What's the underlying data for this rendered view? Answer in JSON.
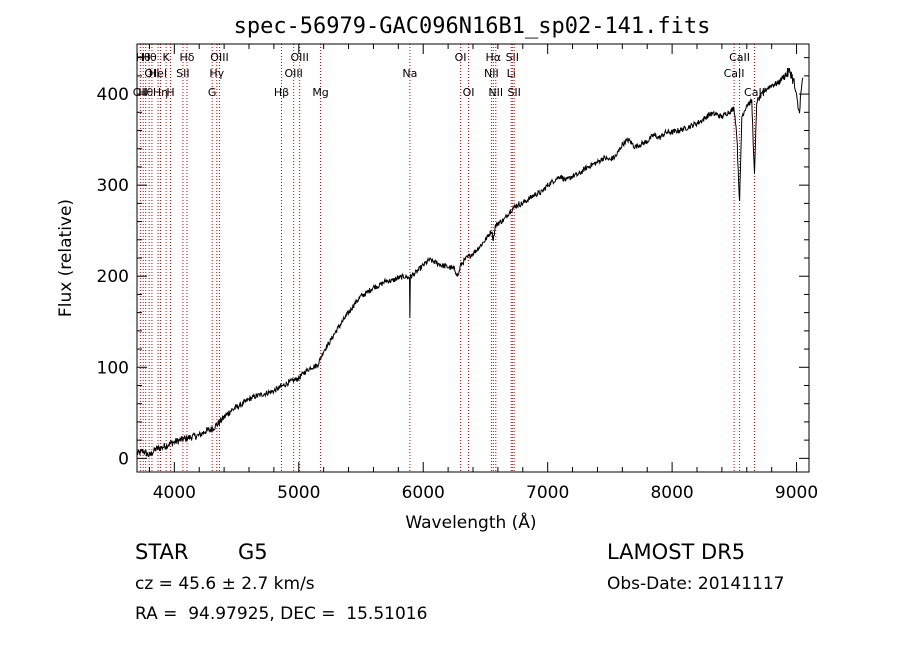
{
  "chart_data": {
    "type": "line",
    "title": "spec-56979-GAC096N16B1_sp02-141.fits",
    "xlabel": "Wavelength (Å)",
    "ylabel": "Flux (relative)",
    "xlim": [
      3700,
      9100
    ],
    "ylim": [
      -15,
      455
    ],
    "xticks": [
      4000,
      5000,
      6000,
      7000,
      8000,
      9000
    ],
    "yticks": [
      0,
      100,
      200,
      300,
      400
    ],
    "line_color": "#000000",
    "marker_color": "#cc0000",
    "series": [
      {
        "x": [
          3700,
          3750,
          3800,
          3850,
          3900,
          3950,
          4000,
          4050,
          4100,
          4150,
          4200,
          4250,
          4300,
          4350,
          4400,
          4450,
          4500,
          4550,
          4600,
          4650,
          4700,
          4750,
          4800,
          4850,
          4900,
          4950,
          5000,
          5050,
          5100,
          5150,
          5200,
          5250,
          5300,
          5350,
          5400,
          5450,
          5500,
          5550,
          5600,
          5650,
          5700,
          5750,
          5800,
          5850,
          5890,
          5893,
          5896,
          5900,
          5950,
          6000,
          6050,
          6100,
          6150,
          6200,
          6250,
          6280,
          6300,
          6350,
          6400,
          6450,
          6500,
          6550,
          6563,
          6580,
          6600,
          6650,
          6700,
          6750,
          6800,
          6850,
          6900,
          6950,
          7000,
          7050,
          7100,
          7150,
          7200,
          7250,
          7300,
          7350,
          7400,
          7450,
          7500,
          7550,
          7600,
          7650,
          7700,
          7750,
          7800,
          7850,
          7900,
          7950,
          8000,
          8050,
          8100,
          8150,
          8200,
          8250,
          8300,
          8350,
          8400,
          8450,
          8480,
          8498,
          8520,
          8542,
          8560,
          8600,
          8640,
          8662,
          8680,
          8700,
          8750,
          8800,
          8850,
          8900,
          8950,
          8980,
          9000,
          9020,
          9050
        ],
        "y": [
          5,
          8,
          3,
          10,
          12,
          15,
          18,
          20,
          22,
          24,
          25,
          30,
          32,
          38,
          45,
          52,
          56,
          60,
          65,
          68,
          70,
          72,
          74,
          78,
          82,
          85,
          88,
          95,
          100,
          102,
          118,
          128,
          140,
          150,
          160,
          170,
          178,
          182,
          188,
          190,
          195,
          195,
          198,
          200,
          198,
          155,
          198,
          200,
          205,
          212,
          218,
          215,
          212,
          210,
          208,
          200,
          212,
          220,
          225,
          232,
          240,
          250,
          240,
          255,
          258,
          262,
          272,
          278,
          280,
          285,
          290,
          292,
          300,
          305,
          310,
          305,
          310,
          312,
          318,
          322,
          325,
          330,
          328,
          332,
          345,
          350,
          342,
          345,
          348,
          355,
          352,
          358,
          358,
          360,
          362,
          365,
          368,
          372,
          378,
          378,
          375,
          380,
          382,
          385,
          355,
          280,
          375,
          388,
          392,
          310,
          392,
          395,
          405,
          410,
          412,
          420,
          425,
          412,
          395,
          380,
          418
        ]
      }
    ],
    "line_markers": [
      {
        "wl": 3727,
        "label": "OII",
        "row": 3
      },
      {
        "wl": 3750,
        "label": "Hθ",
        "row": 1
      },
      {
        "wl": 3770,
        "label": "Hθ",
        "row": 3
      },
      {
        "wl": 3798,
        "label": "Hθ",
        "row": 1
      },
      {
        "wl": 3820,
        "label": "OII",
        "row": 2
      },
      {
        "wl": 3869,
        "label": "HeI",
        "row": 2
      },
      {
        "wl": 3889,
        "label": "Hη",
        "row": 3
      },
      {
        "wl": 3934,
        "label": "K",
        "row": 1
      },
      {
        "wl": 3969,
        "label": "H",
        "row": 3
      },
      {
        "wl": 4069,
        "label": "SII",
        "row": 2
      },
      {
        "wl": 4102,
        "label": "Hδ",
        "row": 1
      },
      {
        "wl": 4304,
        "label": "G",
        "row": 3
      },
      {
        "wl": 4341,
        "label": "Hγ",
        "row": 2
      },
      {
        "wl": 4363,
        "label": "OIII",
        "row": 1
      },
      {
        "wl": 4861,
        "label": "Hβ",
        "row": 3
      },
      {
        "wl": 4959,
        "label": "OIII",
        "row": 2
      },
      {
        "wl": 5007,
        "label": "OIII",
        "row": 1
      },
      {
        "wl": 5175,
        "label": "Mg",
        "row": 3
      },
      {
        "wl": 5893,
        "label": "Na",
        "row": 2
      },
      {
        "wl": 6300,
        "label": "OI",
        "row": 1
      },
      {
        "wl": 6364,
        "label": "OI",
        "row": 3
      },
      {
        "wl": 6548,
        "label": "NII",
        "row": 2
      },
      {
        "wl": 6563,
        "label": "Hα",
        "row": 1
      },
      {
        "wl": 6583,
        "label": "NII",
        "row": 3
      },
      {
        "wl": 6707,
        "label": "Li",
        "row": 2
      },
      {
        "wl": 6716,
        "label": "SII",
        "row": 1
      },
      {
        "wl": 6731,
        "label": "SII",
        "row": 3
      },
      {
        "wl": 8498,
        "label": "CaII",
        "row": 2
      },
      {
        "wl": 8542,
        "label": "CaII",
        "row": 1
      },
      {
        "wl": 8662,
        "label": "CaII",
        "row": 3
      }
    ]
  },
  "info": {
    "object_class": "STAR",
    "subclass": "G5",
    "survey": "LAMOST DR5",
    "redshift_text": "cz = 45.6 ± 2.7 km/s",
    "obs_date_text": "Obs-Date: 20141117",
    "coords_text": "RA =  94.97925, DEC =  15.51016"
  }
}
